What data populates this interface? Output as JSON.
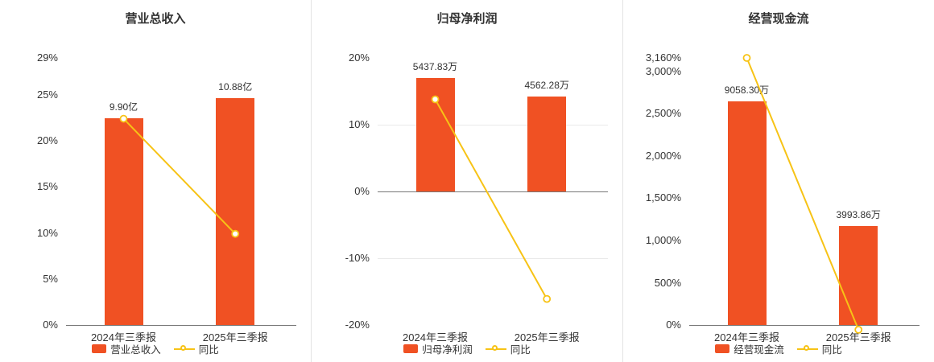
{
  "colors": {
    "bar": "#f05123",
    "line": "#f7c316",
    "axis": "#777777",
    "grid": "#e9e9e9",
    "text": "#333333",
    "divider": "#e4e4e4",
    "background": "#ffffff"
  },
  "chart_data": [
    {
      "type": "bar",
      "title": "营业总收入",
      "categories": [
        "2024年三季报",
        "2025年三季报"
      ],
      "bar_series": {
        "name": "营业总收入",
        "values": [
          9.9,
          10.88
        ],
        "unit": "亿",
        "labels": [
          "9.90亿",
          "10.88亿"
        ]
      },
      "line_series": {
        "name": "同比",
        "values": [
          22.4,
          9.9
        ],
        "unit": "%"
      },
      "y_axis": {
        "min": 0,
        "max": 29,
        "ticks": [
          0,
          5,
          10,
          15,
          20,
          25,
          29
        ],
        "tick_labels": [
          "0%",
          "5%",
          "10%",
          "15%",
          "20%",
          "25%",
          "29%"
        ]
      },
      "bar_axis_max": 12.8,
      "gridline_ticks": [],
      "legend_position": "bottom"
    },
    {
      "type": "bar",
      "title": "归母净利润",
      "categories": [
        "2024年三季报",
        "2025年三季报"
      ],
      "bar_series": {
        "name": "归母净利润",
        "values": [
          5437.83,
          4562.28
        ],
        "unit": "万",
        "labels": [
          "5437.83万",
          "4562.28万"
        ]
      },
      "line_series": {
        "name": "同比",
        "values": [
          13.8,
          -16.1
        ],
        "unit": "%"
      },
      "y_axis": {
        "min": -20,
        "max": 20,
        "ticks": [
          -20,
          -10,
          0,
          10,
          20
        ],
        "tick_labels": [
          "-20%",
          "-10%",
          "0%",
          "10%",
          "20%"
        ]
      },
      "bar_axis_max": 6400,
      "gridline_ticks": [
        10,
        -10
      ],
      "legend_position": "bottom"
    },
    {
      "type": "bar",
      "title": "经营现金流",
      "categories": [
        "2024年三季报",
        "2025年三季报"
      ],
      "bar_series": {
        "name": "经营现金流",
        "values": [
          9058.3,
          3993.86
        ],
        "unit": "万",
        "labels": [
          "9058.30万",
          "3993.86万"
        ]
      },
      "line_series": {
        "name": "同比",
        "values": [
          3160,
          -55.9
        ],
        "unit": "%"
      },
      "y_axis": {
        "min": 0,
        "max": 3160,
        "ticks": [
          0,
          500,
          1000,
          1500,
          2000,
          2500,
          3000,
          3160
        ],
        "tick_labels": [
          "0%",
          "500%",
          "1,000%",
          "1,500%",
          "2,000%",
          "2,500%",
          "3,000%",
          "3,160%"
        ]
      },
      "bar_axis_max": 10800,
      "gridline_ticks": [],
      "legend_position": "bottom"
    }
  ]
}
